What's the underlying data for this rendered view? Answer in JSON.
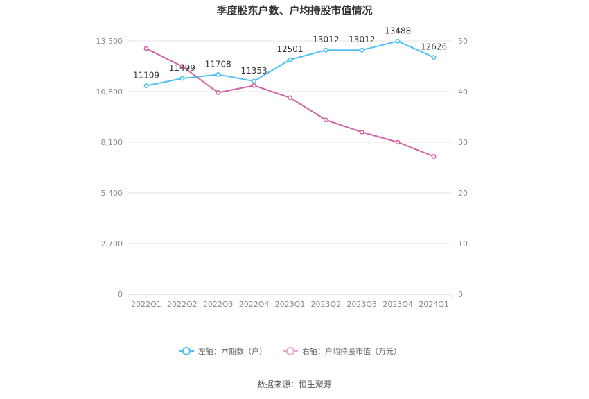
{
  "chart_data": {
    "type": "line",
    "title": "季度股东户数、户均持股市值情况",
    "categories": [
      "2022Q1",
      "2022Q2",
      "2022Q3",
      "2022Q4",
      "2023Q1",
      "2023Q2",
      "2023Q3",
      "2023Q4",
      "2024Q1"
    ],
    "left_axis": {
      "min": 0,
      "max": 13500,
      "ticks": [
        0,
        2700,
        5400,
        8100,
        10800,
        13500
      ],
      "tick_labels": [
        "0",
        "2,700",
        "5,400",
        "8,100",
        "10,800",
        "13,500"
      ]
    },
    "right_axis": {
      "min": 0,
      "max": 50,
      "ticks": [
        0,
        10,
        20,
        30,
        40,
        50
      ],
      "tick_labels": [
        "0",
        "10",
        "20",
        "30",
        "40",
        "50"
      ]
    },
    "series": [
      {
        "name": "左轴：本期数（户）",
        "axis": "left",
        "color": "#4fc1f0",
        "values": [
          11109,
          11499,
          11708,
          11353,
          12501,
          13012,
          13012,
          13488,
          12626
        ],
        "labels": [
          "11109",
          "11499",
          "11708",
          "11353",
          "12501",
          "13012",
          "13012",
          "13488",
          "12626"
        ]
      },
      {
        "name": "右轴：户均持股市值（万元）",
        "axis": "right",
        "color": "#d162a4",
        "values": [
          48.5,
          45.0,
          39.8,
          41.2,
          38.8,
          34.4,
          32.0,
          30.0,
          27.2
        ]
      }
    ],
    "grid": true,
    "legend_position": "bottom"
  },
  "source_text": "数据来源：恒生聚源"
}
